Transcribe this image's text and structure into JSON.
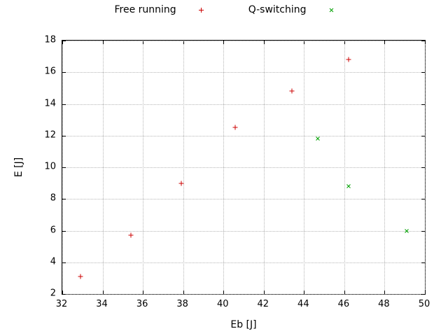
{
  "legend": {
    "items": [
      {
        "label": "Free running",
        "marker": "plus",
        "color": "#cc0000"
      },
      {
        "label": "Q-switching",
        "marker": "cross",
        "color": "#00a000"
      }
    ]
  },
  "chart_data": {
    "type": "scatter",
    "title": "",
    "xlabel": "Eb [J]",
    "ylabel": "E [J]",
    "xlim": [
      32,
      50
    ],
    "ylim": [
      2,
      18
    ],
    "xticks": [
      32,
      34,
      36,
      38,
      40,
      42,
      44,
      46,
      48,
      50
    ],
    "yticks": [
      2,
      4,
      6,
      8,
      10,
      12,
      14,
      16,
      18
    ],
    "grid": true,
    "legend_position": "top-center",
    "series": [
      {
        "name": "Free running",
        "marker": "plus",
        "color": "#cc0000",
        "points": [
          [
            32.9,
            3.1
          ],
          [
            35.4,
            5.7
          ],
          [
            37.9,
            9.0
          ],
          [
            40.6,
            12.5
          ],
          [
            43.4,
            14.8
          ],
          [
            46.2,
            16.8
          ]
        ]
      },
      {
        "name": "Q-switching",
        "marker": "cross",
        "color": "#00a000",
        "points": [
          [
            44.7,
            11.8
          ],
          [
            46.2,
            8.8
          ],
          [
            49.1,
            6.0
          ]
        ]
      }
    ]
  }
}
